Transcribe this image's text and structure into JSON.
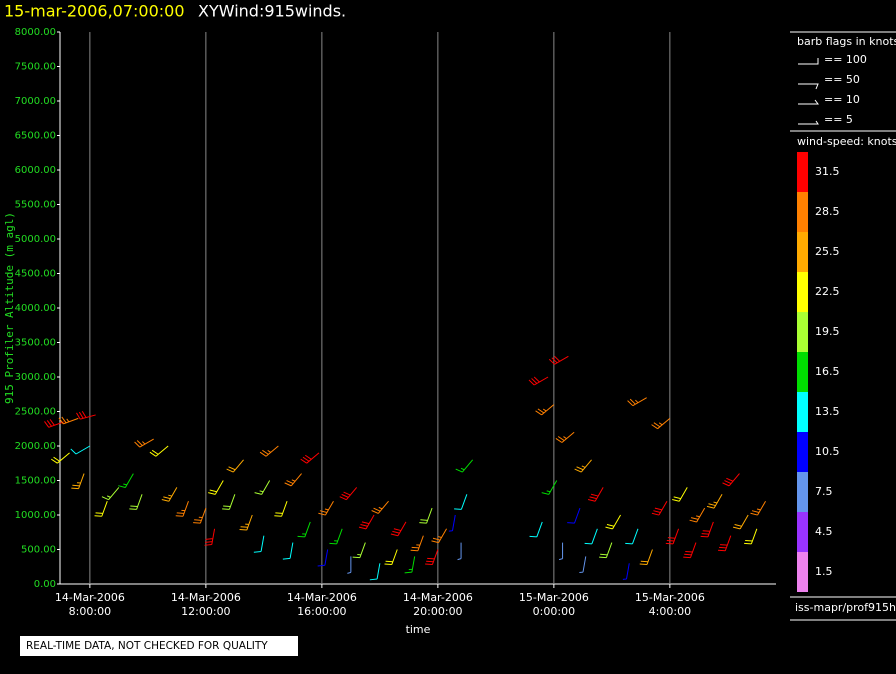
{
  "chart_data": {
    "type": "barbs",
    "title": "15-mar-2006,07:00:00",
    "subtitle": "XYWind:915winds.",
    "xlabel": "time",
    "ylabel": "915 Profiler Altitude (m agl)",
    "xlim": [
      6.97,
      31.66
    ],
    "ylim": [
      0,
      8000
    ],
    "xticks": [
      {
        "value": 8,
        "label": "14-Mar-2006\n8:00:00"
      },
      {
        "value": 12,
        "label": "14-Mar-2006\n12:00:00"
      },
      {
        "value": 16,
        "label": "14-Mar-2006\n16:00:00"
      },
      {
        "value": 20,
        "label": "14-Mar-2006\n20:00:00"
      },
      {
        "value": 24,
        "label": "15-Mar-2006\n0:00:00"
      },
      {
        "value": 28,
        "label": "15-Mar-2006\n4:00:00"
      }
    ],
    "yticks": [
      {
        "value": 0,
        "label": "0.00"
      },
      {
        "value": 500,
        "label": "500.00"
      },
      {
        "value": 1000,
        "label": "1000.00"
      },
      {
        "value": 1500,
        "label": "1500.00"
      },
      {
        "value": 2000,
        "label": "2000.00"
      },
      {
        "value": 2500,
        "label": "2500.00"
      },
      {
        "value": 3000,
        "label": "3000.00"
      },
      {
        "value": 3500,
        "label": "3500.00"
      },
      {
        "value": 4000,
        "label": "4000.00"
      },
      {
        "value": 4500,
        "label": "4500.00"
      },
      {
        "value": 5000,
        "label": "5000.00"
      },
      {
        "value": 5500,
        "label": "5500.00"
      },
      {
        "value": 6000,
        "label": "6000.00"
      },
      {
        "value": 6500,
        "label": "6500.00"
      },
      {
        "value": 7000,
        "label": "7000.00"
      },
      {
        "value": 7500,
        "label": "7500.00"
      },
      {
        "value": 8000,
        "label": "8000.00"
      }
    ],
    "grid": true,
    "barbs": {
      "x": [
        7.1,
        7.6,
        8.2,
        8.0,
        7.3,
        7.8,
        8.6,
        9.0,
        9.5,
        9.8,
        10.2,
        10.7,
        11.0,
        11.4,
        12.0,
        12.3,
        12.6,
        13.0,
        13.3,
        13.6,
        14.0,
        14.2,
        14.5,
        14.8,
        15.0,
        15.3,
        15.6,
        15.9,
        16.2,
        16.4,
        16.7,
        17.0,
        17.2,
        17.5,
        17.8,
        18.0,
        18.3,
        18.6,
        18.9,
        19.2,
        19.5,
        19.8,
        20.0,
        20.3,
        20.6,
        20.8,
        21.0,
        21.2,
        23.6,
        23.8,
        24.0,
        24.1,
        24.3,
        24.5,
        24.7,
        24.9,
        25.1,
        25.3,
        25.5,
        25.7,
        26.0,
        26.3,
        26.6,
        26.9,
        27.2,
        27.4,
        27.9,
        28.0,
        28.3,
        28.6,
        28.9,
        29.2,
        29.5,
        29.8,
        30.1,
        30.4,
        30.7,
        31.0,
        31.3
      ],
      "altitude": [
        2350,
        2400,
        2450,
        2000,
        1900,
        1600,
        1200,
        1400,
        1600,
        1300,
        2100,
        2000,
        1400,
        1200,
        1100,
        800,
        1500,
        1300,
        1800,
        1000,
        700,
        1500,
        2000,
        1200,
        600,
        1600,
        900,
        1900,
        500,
        1200,
        800,
        400,
        1400,
        600,
        1000,
        300,
        1200,
        500,
        900,
        400,
        700,
        1100,
        500,
        800,
        1000,
        600,
        1300,
        1800,
        900,
        3000,
        2600,
        1500,
        600,
        3300,
        2200,
        1100,
        400,
        1800,
        800,
        1400,
        600,
        1000,
        300,
        800,
        2700,
        500,
        1200,
        2400,
        800,
        1400,
        600,
        1100,
        900,
        1300,
        700,
        1600,
        1000,
        800,
        1200
      ],
      "speed": [
        30,
        28,
        30,
        12,
        22,
        25,
        22,
        18,
        15,
        20,
        27,
        22,
        25,
        28,
        29,
        30,
        22,
        20,
        24,
        26,
        12,
        18,
        28,
        22,
        14,
        29,
        16,
        30,
        10,
        28,
        15,
        8,
        31,
        18,
        30,
        12,
        29,
        22,
        31,
        16,
        29,
        20,
        30,
        28,
        9,
        8,
        12,
        16,
        12,
        31,
        29,
        17,
        8,
        31,
        28,
        10,
        6,
        26,
        14,
        31,
        20,
        23,
        9,
        12,
        28,
        24,
        30,
        28,
        31,
        22,
        30,
        29,
        31,
        26,
        30,
        30,
        24,
        22,
        28
      ],
      "direction": [
        250,
        250,
        255,
        240,
        230,
        200,
        200,
        220,
        210,
        200,
        240,
        230,
        210,
        200,
        200,
        190,
        210,
        200,
        220,
        200,
        190,
        210,
        230,
        200,
        190,
        220,
        200,
        230,
        190,
        210,
        200,
        180,
        220,
        200,
        210,
        190,
        220,
        200,
        210,
        190,
        200,
        200,
        200,
        210,
        190,
        180,
        200,
        220,
        200,
        240,
        230,
        210,
        180,
        240,
        230,
        200,
        190,
        220,
        200,
        210,
        200,
        210,
        190,
        200,
        240,
        200,
        210,
        230,
        200,
        210,
        200,
        210,
        200,
        210,
        200,
        220,
        210,
        200,
        210
      ]
    },
    "barb_legend": {
      "title": "barb flags in knots",
      "items": [
        "== 100",
        "== 50",
        "== 10",
        "== 5"
      ]
    },
    "colorbar": {
      "title": "wind-speed: knots",
      "labels": [
        31.5,
        28.5,
        25.5,
        22.5,
        19.5,
        16.5,
        13.5,
        10.5,
        7.5,
        4.5,
        1.5
      ],
      "colors": [
        "#ff0000",
        "#ff8000",
        "#ffaa00",
        "#ffff00",
        "#aaff33",
        "#00dd00",
        "#00ffff",
        "#0000ff",
        "#6495ed",
        "#9933ff",
        "#ee82ee"
      ]
    },
    "source": "iss-mapr/prof915h",
    "footer": "REAL-TIME DATA, NOT CHECKED FOR QUALITY"
  }
}
